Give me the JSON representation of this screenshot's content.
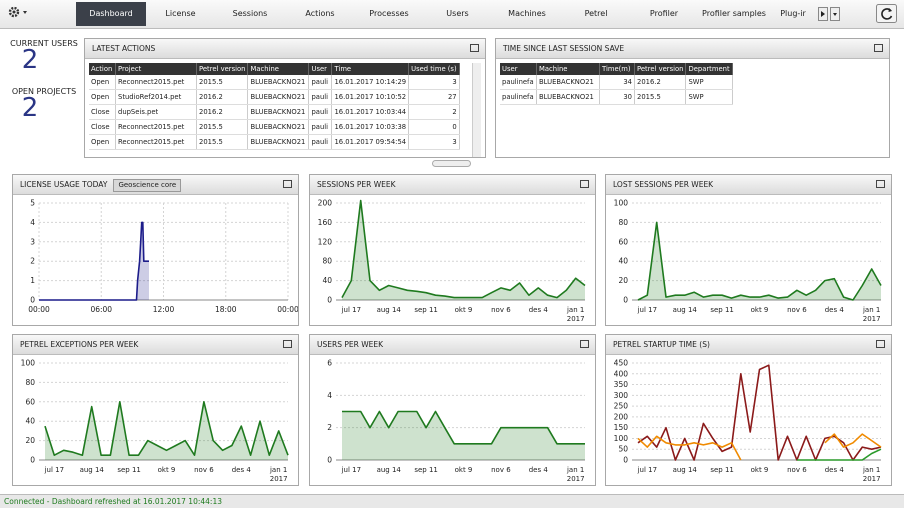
{
  "nav": {
    "tabs": [
      "Dashboard",
      "License",
      "Sessions",
      "Actions",
      "Processes",
      "Users",
      "Machines",
      "Petrel",
      "Profiler",
      "Profiler samples",
      "Plug-ir"
    ]
  },
  "stats": [
    {
      "label": "CURRENT USERS",
      "value": 2
    },
    {
      "label": "OPEN PROJECTS",
      "value": 2
    }
  ],
  "latest_actions": {
    "title": "LATEST ACTIONS",
    "columns": [
      "Action",
      "Project",
      "Petrel version",
      "Machine",
      "User",
      "Time",
      "Used time (s)"
    ],
    "rows": [
      [
        "Open",
        "Reconnect2015.pet",
        "2015.5",
        "BLUEBACKNO21",
        "pauli",
        "16.01.2017 10:14:29",
        3
      ],
      [
        "Open",
        "StudioRef2014.pet",
        "2016.2",
        "BLUEBACKNO21",
        "pauli",
        "16.01.2017 10:10:52",
        27
      ],
      [
        "Close",
        "dupSeis.pet",
        "2016.2",
        "BLUEBACKNO21",
        "pauli",
        "16.01.2017 10:03:44",
        2
      ],
      [
        "Close",
        "Reconnect2015.pet",
        "2015.5",
        "BLUEBACKNO21",
        "pauli",
        "16.01.2017 10:03:38",
        0
      ],
      [
        "Open",
        "Reconnect2015.pet",
        "2015.5",
        "BLUEBACKNO21",
        "pauli",
        "16.01.2017 09:54:54",
        3
      ]
    ]
  },
  "session_save": {
    "title": "TIME SINCE LAST SESSION SAVE",
    "columns": [
      "User",
      "Machine",
      "Time(m)",
      "Petrel version",
      "Department"
    ],
    "rows": [
      [
        "paulinefa",
        "BLUEBACKNO21",
        34,
        "2016.2",
        "SWP"
      ],
      [
        "paulinefa",
        "BLUEBACKNO21",
        30,
        "2015.5",
        "SWP"
      ]
    ]
  },
  "chart_data": [
    {
      "type": "area",
      "title": "LICENSE USAGE TODAY",
      "dropdown": "Geoscience core",
      "color": "#1c1c8a",
      "grid": true,
      "x": [
        0,
        9.4,
        9.5,
        9.7,
        9.8,
        9.9,
        10.0,
        10.1,
        10.6
      ],
      "values": [
        0,
        0,
        1,
        2,
        3,
        4,
        4,
        2,
        2
      ],
      "xlim": [
        0,
        24
      ],
      "xticks": [
        {
          "value": 0,
          "label": "00:00"
        },
        {
          "value": 6,
          "label": "06:00"
        },
        {
          "value": 12,
          "label": "12:00"
        },
        {
          "value": 18,
          "label": "18:00"
        },
        {
          "value": 24,
          "label": "00:00"
        }
      ],
      "ylim": [
        0,
        5
      ],
      "yticks": [
        0,
        1,
        2,
        3,
        4,
        5
      ]
    },
    {
      "type": "area",
      "title": "SESSIONS PER WEEK",
      "color": "#1f7a1f",
      "grid": true,
      "categories": [
        null,
        "jul 17",
        null,
        null,
        null,
        "aug 14",
        null,
        null,
        null,
        "sep 11",
        null,
        null,
        null,
        "okt 9",
        null,
        null,
        null,
        "nov 6",
        null,
        null,
        null,
        "des 4",
        null,
        null,
        null,
        "jan 1",
        null
      ],
      "x_sublabel": "2017",
      "values": [
        5,
        40,
        205,
        40,
        20,
        30,
        25,
        20,
        18,
        15,
        10,
        8,
        5,
        5,
        5,
        5,
        15,
        25,
        20,
        35,
        10,
        25,
        10,
        5,
        20,
        45,
        30
      ],
      "ylim": [
        0,
        200
      ],
      "yticks": [
        0,
        40,
        80,
        120,
        160,
        200
      ]
    },
    {
      "type": "area",
      "title": "LOST SESSIONS PER WEEK",
      "color": "#1f7a1f",
      "grid": true,
      "categories": [
        null,
        "jul 17",
        null,
        null,
        null,
        "aug 14",
        null,
        null,
        null,
        "sep 11",
        null,
        null,
        null,
        "okt 9",
        null,
        null,
        null,
        "nov 6",
        null,
        null,
        null,
        "des 4",
        null,
        null,
        null,
        "jan 1",
        null
      ],
      "x_sublabel": "2017",
      "values": [
        0,
        5,
        80,
        3,
        5,
        5,
        8,
        3,
        5,
        5,
        2,
        5,
        3,
        3,
        5,
        2,
        3,
        10,
        5,
        10,
        20,
        22,
        3,
        0,
        15,
        32,
        15
      ],
      "ylim": [
        0,
        100
      ],
      "yticks": [
        0,
        20,
        40,
        60,
        80,
        100
      ]
    },
    {
      "type": "area",
      "title": "PETREL EXCEPTIONS PER WEEK",
      "color": "#1f7a1f",
      "grid": true,
      "categories": [
        null,
        "jul 17",
        null,
        null,
        null,
        "aug 14",
        null,
        null,
        null,
        "sep 11",
        null,
        null,
        null,
        "okt 9",
        null,
        null,
        null,
        "nov 6",
        null,
        null,
        null,
        "des 4",
        null,
        null,
        null,
        "jan 1",
        null
      ],
      "x_sublabel": "2017",
      "values": [
        35,
        5,
        10,
        8,
        5,
        55,
        5,
        5,
        60,
        5,
        5,
        20,
        15,
        10,
        15,
        20,
        5,
        60,
        20,
        10,
        15,
        35,
        5,
        40,
        5,
        30,
        5
      ],
      "ylim": [
        0,
        100
      ],
      "yticks": [
        0,
        20,
        40,
        60,
        80,
        100
      ]
    },
    {
      "type": "area",
      "title": "USERS PER WEEK",
      "color": "#1f7a1f",
      "grid": true,
      "categories": [
        null,
        "jul 17",
        null,
        null,
        null,
        "aug 14",
        null,
        null,
        null,
        "sep 11",
        null,
        null,
        null,
        "okt 9",
        null,
        null,
        null,
        "nov 6",
        null,
        null,
        null,
        "des 4",
        null,
        null,
        null,
        "jan 1",
        null
      ],
      "x_sublabel": "2017",
      "values": [
        3,
        3,
        3,
        2,
        3,
        2,
        3,
        3,
        3,
        2,
        3,
        2,
        1,
        1,
        1,
        1,
        1,
        2,
        2,
        2,
        2,
        2,
        2,
        1,
        1,
        1,
        1
      ],
      "ylim": [
        0,
        6
      ],
      "yticks": [
        0,
        2,
        4,
        6
      ]
    },
    {
      "type": "line",
      "title": "PETREL STARTUP TIME (S)",
      "grid": true,
      "categories": [
        null,
        "jul 17",
        null,
        null,
        null,
        "aug 14",
        null,
        null,
        null,
        "sep 11",
        null,
        null,
        null,
        "okt 9",
        null,
        null,
        null,
        "nov 6",
        null,
        null,
        null,
        "des 4",
        null,
        null,
        null,
        "jan 1",
        null
      ],
      "x_sublabel": "2017",
      "series": [
        {
          "color": "#8b1a1a",
          "values": [
            80,
            110,
            60,
            150,
            0,
            100,
            0,
            170,
            100,
            40,
            60,
            400,
            130,
            420,
            440,
            0,
            110,
            0,
            110,
            0,
            100,
            110,
            80,
            0,
            60,
            50,
            60
          ]
        },
        {
          "color": "#f08a00",
          "values": [
            100,
            60,
            110,
            80,
            70,
            70,
            80,
            70,
            80,
            60,
            80,
            0,
            null,
            null,
            null,
            null,
            null,
            null,
            null,
            null,
            80,
            120,
            60,
            80,
            120,
            90,
            60
          ]
        },
        {
          "color": "#2a9a2a",
          "values": [
            null,
            null,
            null,
            null,
            null,
            null,
            null,
            null,
            null,
            null,
            null,
            null,
            null,
            null,
            null,
            null,
            null,
            0,
            0,
            0,
            0,
            0,
            0,
            0,
            0,
            30,
            50
          ]
        }
      ],
      "ylim": [
        0,
        450
      ],
      "yticks": [
        0,
        50,
        100,
        150,
        200,
        250,
        300,
        350,
        400,
        450
      ]
    }
  ],
  "status": "Connected - Dashboard refreshed at 16.01.2017 10:44:13"
}
